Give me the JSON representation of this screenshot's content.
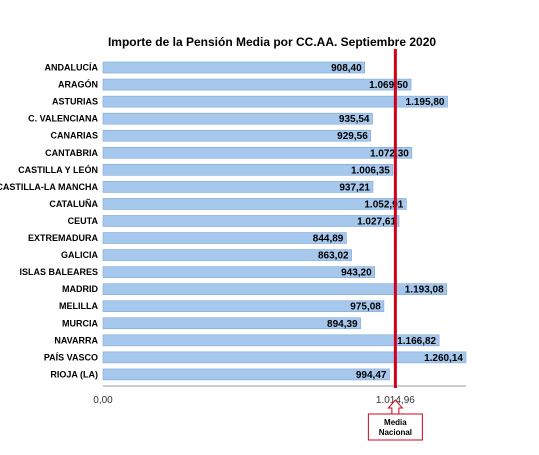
{
  "chart_data": {
    "type": "bar",
    "orientation": "horizontal",
    "title": "Importe de la Pensión Media  por CC.AA. Septiembre 2020",
    "categories": [
      "ANDALUCÍA",
      "ARAGÓN",
      "ASTURIAS",
      "C. VALENCIANA",
      "CANARIAS",
      "CANTABRIA",
      "CASTILLA Y LEÓN",
      "CASTILLA-LA MANCHA",
      "CATALUÑA",
      "CEUTA",
      "EXTREMADURA",
      "GALICIA",
      "ISLAS BALEARES",
      "MADRID",
      "MELILLA",
      "MURCIA",
      "NAVARRA",
      "PAÍS VASCO",
      "RIOJA (LA)"
    ],
    "values": [
      908.4,
      1069.5,
      1195.8,
      935.54,
      929.56,
      1072.3,
      1006.35,
      937.21,
      1052.91,
      1027.61,
      844.89,
      863.02,
      943.2,
      1193.08,
      975.08,
      894.39,
      1166.82,
      1260.14,
      994.47
    ],
    "value_labels": [
      "908,40",
      "1.069,50",
      "1.195,80",
      "935,54",
      "929,56",
      "1.072,30",
      "1.006,35",
      "937,21",
      "1.052,91",
      "1.027,61",
      "844,89",
      "863,02",
      "943,20",
      "1.193,08",
      "975,08",
      "894,39",
      "1.166,82",
      "1.260,14",
      "994,47"
    ],
    "xlim": [
      0,
      1260.14
    ],
    "ticks": [
      {
        "value": 0,
        "label": "0,00"
      },
      {
        "value": 1014.96,
        "label": "1.014,96"
      }
    ],
    "reference_line": {
      "value": 1014.96,
      "color": "#d0021b"
    },
    "callout": {
      "line1": "Media",
      "line2": "Nacional"
    },
    "colors": {
      "bar_fill": "#a6c8ec",
      "bar_stroke": "#7da7d6",
      "axis": "#999999",
      "reference": "#d0021b"
    },
    "grid": false
  }
}
